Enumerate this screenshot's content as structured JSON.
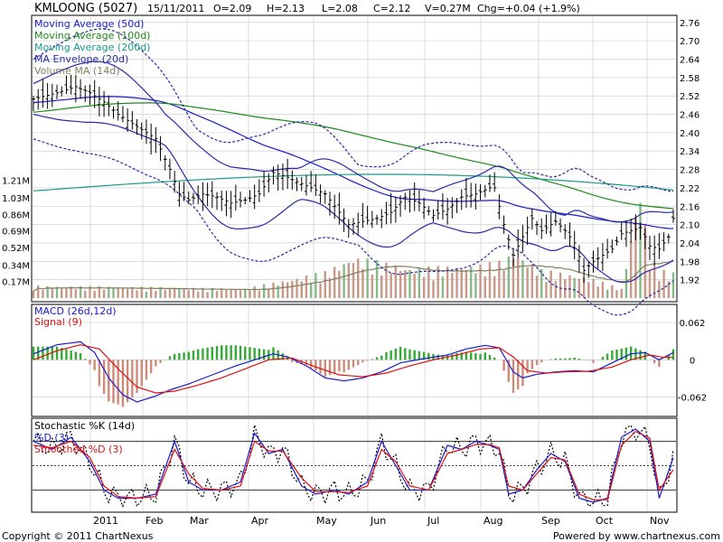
{
  "header": {
    "symbol": "KMLOONG (5027)",
    "date": "15/11/2011",
    "open": "O=2.09",
    "high": "H=2.13",
    "low": "L=2.08",
    "close": "C=2.12",
    "volume": "V=0.27M",
    "change": "Chg=+0.04 (+1.9%)"
  },
  "footer": {
    "copyright": "Copyright © 2011 ChartNexus",
    "powered": "Powered by www.chartnexus.com"
  },
  "colors": {
    "price": "#000000",
    "ma50": "#1a1acc",
    "ma100": "#1a8a1a",
    "ma200": "#1a9a8a",
    "envelope": "#2a2aaa",
    "volume_ma": "#808060",
    "volume_bar": "#c89888",
    "macd": "#1a1acc",
    "signal": "#dd1111",
    "hist_pos": "#33aa33",
    "hist_neg": "#d08a7a",
    "grid": "#c8c8c8"
  },
  "chart_data": [
    {
      "type": "candlestick",
      "panel": "price",
      "legend": [
        "Moving Average (50d)",
        "Moving Average (100d)",
        "Moving Average (200d)",
        "MA Envelope (20d)",
        "Volume MA (14d)"
      ],
      "y_right_ticks": [
        "2.76",
        "2.70",
        "2.64",
        "2.58",
        "2.52",
        "2.46",
        "2.40",
        "2.34",
        "2.28",
        "2.22",
        "2.16",
        "2.10",
        "2.04",
        "1.98",
        "1.92"
      ],
      "y_left_volume_ticks": [
        "1.21M",
        "1.03M",
        "0.86M",
        "0.69M",
        "0.52M",
        "0.34M",
        "0.17M"
      ],
      "ylim": [
        1.86,
        2.78
      ],
      "x_labels": [
        "2011",
        "Feb",
        "Mar",
        "Apr",
        "May",
        "Jun",
        "Jul",
        "Aug",
        "Sep",
        "Oct",
        "Nov"
      ],
      "close_keypoints": [
        [
          0,
          2.51
        ],
        [
          5,
          2.53
        ],
        [
          9,
          2.55
        ],
        [
          12,
          2.53
        ],
        [
          15,
          2.5
        ],
        [
          18,
          2.46
        ],
        [
          22,
          2.42
        ],
        [
          26,
          2.38
        ],
        [
          29,
          2.28
        ],
        [
          31,
          2.2
        ],
        [
          33,
          2.18
        ],
        [
          36,
          2.2
        ],
        [
          39,
          2.19
        ],
        [
          42,
          2.17
        ],
        [
          45,
          2.18
        ],
        [
          48,
          2.2
        ],
        [
          51,
          2.27
        ],
        [
          53,
          2.26
        ],
        [
          56,
          2.24
        ],
        [
          59,
          2.22
        ],
        [
          62,
          2.2
        ],
        [
          65,
          2.14
        ],
        [
          67,
          2.1
        ],
        [
          70,
          2.11
        ],
        [
          73,
          2.12
        ],
        [
          76,
          2.14
        ],
        [
          79,
          2.19
        ],
        [
          82,
          2.17
        ],
        [
          85,
          2.13
        ],
        [
          88,
          2.15
        ],
        [
          91,
          2.19
        ],
        [
          94,
          2.2
        ],
        [
          97,
          2.22
        ],
        [
          98,
          2.22
        ],
        [
          100,
          2.1
        ],
        [
          102,
          2.0
        ],
        [
          104,
          2.06
        ],
        [
          106,
          2.12
        ],
        [
          108,
          2.08
        ],
        [
          111,
          2.11
        ],
        [
          113,
          2.08
        ],
        [
          115,
          2.04
        ],
        [
          117,
          1.95
        ],
        [
          119,
          1.98
        ],
        [
          121,
          2.0
        ],
        [
          123,
          2.02
        ],
        [
          125,
          2.07
        ],
        [
          127,
          2.08
        ],
        [
          129,
          2.09
        ],
        [
          131,
          2.03
        ],
        [
          133,
          2.02
        ],
        [
          135,
          2.06
        ],
        [
          136,
          2.12
        ]
      ],
      "volume_keypoints": [
        [
          0,
          0.13
        ],
        [
          20,
          0.12
        ],
        [
          45,
          0.1
        ],
        [
          62,
          0.28
        ],
        [
          68,
          0.44
        ],
        [
          80,
          0.32
        ],
        [
          95,
          0.35
        ],
        [
          100,
          0.4
        ],
        [
          102,
          0.5
        ],
        [
          108,
          0.3
        ],
        [
          118,
          0.22
        ],
        [
          125,
          0.1
        ],
        [
          129,
          1.21
        ],
        [
          131,
          0.4
        ],
        [
          133,
          0.3
        ],
        [
          136,
          0.27
        ]
      ],
      "volume_ylim": [
        0,
        1.3
      ]
    },
    {
      "type": "line",
      "panel": "macd",
      "legend": [
        "MACD (26d,12d)",
        "Signal (9)"
      ],
      "y_right_ticks": [
        "0.062",
        "0",
        "-0.062"
      ],
      "ylim": [
        -0.085,
        0.08
      ],
      "series": [
        {
          "name": "MACD (26d,12d)",
          "keypoints": [
            [
              0,
              0.01
            ],
            [
              5,
              0.025
            ],
            [
              10,
              0.03
            ],
            [
              13,
              0.012
            ],
            [
              16,
              -0.03
            ],
            [
              19,
              -0.058
            ],
            [
              22,
              -0.07
            ],
            [
              26,
              -0.06
            ],
            [
              29,
              -0.05
            ],
            [
              33,
              -0.04
            ],
            [
              38,
              -0.025
            ],
            [
              43,
              -0.01
            ],
            [
              47,
              0.0
            ],
            [
              51,
              0.01
            ],
            [
              54,
              0.005
            ],
            [
              58,
              -0.01
            ],
            [
              62,
              -0.03
            ],
            [
              66,
              -0.035
            ],
            [
              70,
              -0.03
            ],
            [
              74,
              -0.02
            ],
            [
              78,
              -0.005
            ],
            [
              83,
              0.002
            ],
            [
              88,
              0.008
            ],
            [
              92,
              0.018
            ],
            [
              96,
              0.024
            ],
            [
              99,
              0.02
            ],
            [
              102,
              -0.02
            ],
            [
              104,
              -0.03
            ],
            [
              107,
              -0.024
            ],
            [
              111,
              -0.02
            ],
            [
              115,
              -0.018
            ],
            [
              119,
              -0.02
            ],
            [
              123,
              -0.005
            ],
            [
              127,
              0.01
            ],
            [
              130,
              0.012
            ],
            [
              133,
              0.0
            ],
            [
              136,
              0.012
            ]
          ]
        },
        {
          "name": "Signal (9)",
          "keypoints": [
            [
              0,
              0.0
            ],
            [
              5,
              0.015
            ],
            [
              10,
              0.025
            ],
            [
              14,
              0.018
            ],
            [
              18,
              -0.015
            ],
            [
              22,
              -0.045
            ],
            [
              26,
              -0.055
            ],
            [
              30,
              -0.052
            ],
            [
              35,
              -0.042
            ],
            [
              40,
              -0.03
            ],
            [
              45,
              -0.015
            ],
            [
              50,
              0.0
            ],
            [
              55,
              0.003
            ],
            [
              60,
              -0.012
            ],
            [
              65,
              -0.025
            ],
            [
              70,
              -0.028
            ],
            [
              75,
              -0.022
            ],
            [
              80,
              -0.01
            ],
            [
              85,
              0.0
            ],
            [
              90,
              0.008
            ],
            [
              95,
              0.018
            ],
            [
              99,
              0.02
            ],
            [
              102,
              0.005
            ],
            [
              105,
              -0.018
            ],
            [
              109,
              -0.022
            ],
            [
              113,
              -0.02
            ],
            [
              118,
              -0.019
            ],
            [
              123,
              -0.012
            ],
            [
              127,
              0.0
            ],
            [
              131,
              0.008
            ],
            [
              134,
              0.004
            ],
            [
              136,
              0.004
            ]
          ]
        }
      ]
    },
    {
      "type": "line",
      "panel": "stochastic",
      "legend": [
        "Stochastic %K (14d)",
        "%D (3)",
        "Smoothed %D (3)"
      ],
      "levels": [
        80,
        50,
        20
      ],
      "ylim": [
        -5,
        105
      ],
      "series": [
        {
          "name": "%D (3)",
          "keypoints": [
            [
              0,
              80
            ],
            [
              4,
              70
            ],
            [
              8,
              85
            ],
            [
              12,
              55
            ],
            [
              15,
              20
            ],
            [
              18,
              10
            ],
            [
              22,
              10
            ],
            [
              26,
              15
            ],
            [
              30,
              80
            ],
            [
              33,
              30
            ],
            [
              36,
              20
            ],
            [
              40,
              20
            ],
            [
              44,
              30
            ],
            [
              47,
              90
            ],
            [
              50,
              65
            ],
            [
              53,
              70
            ],
            [
              57,
              25
            ],
            [
              60,
              15
            ],
            [
              64,
              20
            ],
            [
              67,
              15
            ],
            [
              71,
              30
            ],
            [
              74,
              80
            ],
            [
              77,
              50
            ],
            [
              80,
              20
            ],
            [
              84,
              20
            ],
            [
              88,
              75
            ],
            [
              91,
              70
            ],
            [
              94,
              80
            ],
            [
              97,
              75
            ],
            [
              99,
              70
            ],
            [
              101,
              15
            ],
            [
              104,
              20
            ],
            [
              107,
              45
            ],
            [
              110,
              65
            ],
            [
              113,
              55
            ],
            [
              116,
              10
            ],
            [
              119,
              5
            ],
            [
              122,
              10
            ],
            [
              125,
              85
            ],
            [
              128,
              95
            ],
            [
              131,
              80
            ],
            [
              133,
              10
            ],
            [
              136,
              60
            ]
          ]
        },
        {
          "name": "Smoothed %D (3)",
          "keypoints": [
            [
              0,
              75
            ],
            [
              4,
              72
            ],
            [
              8,
              80
            ],
            [
              12,
              60
            ],
            [
              15,
              25
            ],
            [
              18,
              12
            ],
            [
              22,
              10
            ],
            [
              26,
              12
            ],
            [
              30,
              70
            ],
            [
              33,
              40
            ],
            [
              36,
              22
            ],
            [
              40,
              20
            ],
            [
              44,
              25
            ],
            [
              47,
              80
            ],
            [
              50,
              68
            ],
            [
              53,
              68
            ],
            [
              57,
              35
            ],
            [
              60,
              18
            ],
            [
              64,
              18
            ],
            [
              67,
              17
            ],
            [
              71,
              25
            ],
            [
              74,
              70
            ],
            [
              77,
              55
            ],
            [
              80,
              25
            ],
            [
              84,
              20
            ],
            [
              88,
              65
            ],
            [
              91,
              70
            ],
            [
              94,
              76
            ],
            [
              97,
              76
            ],
            [
              99,
              72
            ],
            [
              101,
              25
            ],
            [
              104,
              20
            ],
            [
              107,
              40
            ],
            [
              110,
              60
            ],
            [
              113,
              57
            ],
            [
              116,
              15
            ],
            [
              119,
              8
            ],
            [
              122,
              8
            ],
            [
              125,
              75
            ],
            [
              128,
              92
            ],
            [
              131,
              84
            ],
            [
              133,
              20
            ],
            [
              136,
              45
            ]
          ]
        }
      ]
    }
  ]
}
